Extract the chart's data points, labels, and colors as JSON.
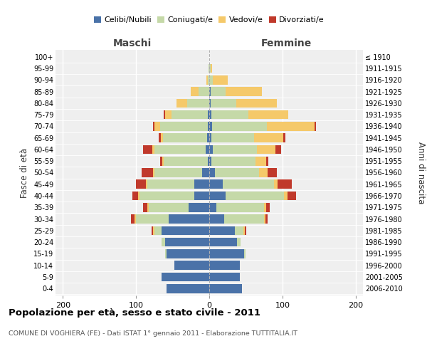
{
  "age_groups": [
    "0-4",
    "5-9",
    "10-14",
    "15-19",
    "20-24",
    "25-29",
    "30-34",
    "35-39",
    "40-44",
    "45-49",
    "50-54",
    "55-59",
    "60-64",
    "65-69",
    "70-74",
    "75-79",
    "80-84",
    "85-89",
    "90-94",
    "95-99",
    "100+"
  ],
  "birth_years": [
    "2006-2010",
    "2001-2005",
    "1996-2000",
    "1991-1995",
    "1986-1990",
    "1981-1985",
    "1976-1980",
    "1971-1975",
    "1966-1970",
    "1961-1965",
    "1956-1960",
    "1951-1955",
    "1946-1950",
    "1941-1945",
    "1936-1940",
    "1931-1935",
    "1926-1930",
    "1921-1925",
    "1916-1920",
    "1911-1915",
    "≤ 1910"
  ],
  "maschi": {
    "celibi": [
      58,
      65,
      48,
      58,
      60,
      65,
      55,
      28,
      20,
      20,
      10,
      2,
      5,
      3,
      2,
      2,
      0,
      0,
      0,
      0,
      0
    ],
    "coniugati": [
      0,
      0,
      0,
      2,
      5,
      10,
      45,
      55,
      75,
      65,
      65,
      60,
      70,
      60,
      65,
      50,
      30,
      15,
      2,
      1,
      0
    ],
    "vedovi": [
      0,
      0,
      0,
      0,
      0,
      2,
      2,
      2,
      2,
      2,
      2,
      2,
      3,
      3,
      8,
      8,
      15,
      10,
      2,
      0,
      0
    ],
    "divorziati": [
      0,
      0,
      0,
      0,
      0,
      2,
      5,
      5,
      8,
      13,
      15,
      3,
      12,
      3,
      2,
      2,
      0,
      0,
      0,
      0,
      0
    ]
  },
  "femmine": {
    "nubili": [
      45,
      42,
      42,
      48,
      38,
      35,
      20,
      10,
      22,
      18,
      8,
      3,
      5,
      3,
      4,
      3,
      2,
      2,
      0,
      0,
      0
    ],
    "coniugate": [
      0,
      0,
      0,
      2,
      5,
      12,
      55,
      65,
      80,
      70,
      60,
      60,
      60,
      58,
      75,
      50,
      35,
      20,
      5,
      2,
      0
    ],
    "vedove": [
      0,
      0,
      0,
      0,
      0,
      2,
      2,
      3,
      5,
      5,
      12,
      15,
      25,
      40,
      65,
      55,
      55,
      50,
      20,
      2,
      0
    ],
    "divorziate": [
      0,
      0,
      0,
      0,
      0,
      2,
      3,
      5,
      12,
      20,
      12,
      3,
      8,
      3,
      2,
      0,
      0,
      0,
      0,
      0,
      0
    ]
  },
  "colors": {
    "celibi": "#4a72a8",
    "coniugati": "#c5d9a8",
    "vedovi": "#f5c96a",
    "divorziati": "#c0392b"
  },
  "xlim": 210,
  "title": "Popolazione per età, sesso e stato civile - 2011",
  "subtitle": "COMUNE DI VOGHIERA (FE) - Dati ISTAT 1° gennaio 2011 - Elaborazione TUTTITALIA.IT",
  "ylabel_left": "Fasce di età",
  "ylabel_right": "Anni di nascita",
  "xlabel_left": "Maschi",
  "xlabel_right": "Femmine",
  "background_color": "#efefef"
}
